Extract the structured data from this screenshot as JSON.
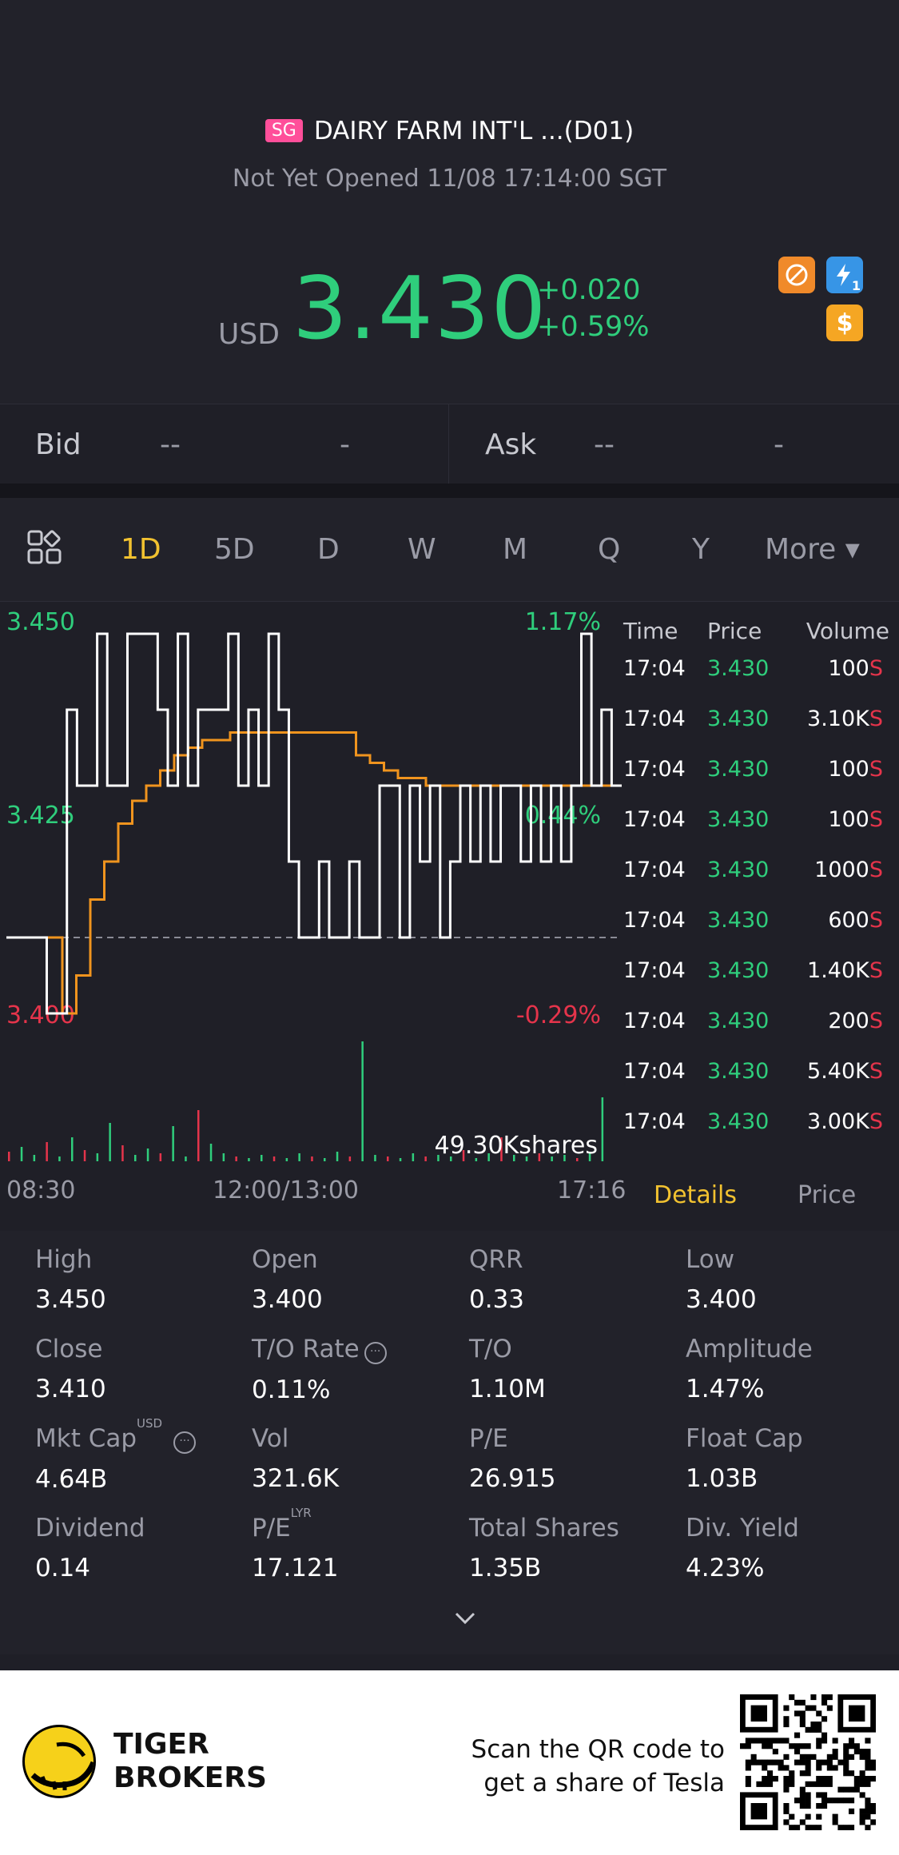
{
  "header": {
    "market_badge": "SG",
    "stock_name": "DAIRY FARM INT'L ...(D01)",
    "status": "Not Yet Opened 11/08 17:14:00 SGT",
    "currency": "USD",
    "price": "3.430",
    "change": "+0.020",
    "change_pct": "+0.59%",
    "icons": [
      "no-short-icon",
      "lightning-icon",
      "dollar-icon"
    ],
    "icon_badge": "1",
    "dollar_glyph": "$"
  },
  "bidask": {
    "bid_label": "Bid",
    "bid_price": "--",
    "bid_size": "-",
    "ask_label": "Ask",
    "ask_price": "--",
    "ask_size": "-"
  },
  "periods": [
    "1D",
    "5D",
    "D",
    "W",
    "M",
    "Q",
    "Y",
    "More ▾"
  ],
  "active_period": "1D",
  "chart_data": {
    "type": "line",
    "title": "",
    "y_labels": [
      "3.450",
      "3.425",
      "3.400"
    ],
    "pct_labels": [
      "1.17%",
      "0.44%",
      "-0.29%"
    ],
    "x_labels": [
      "08:30",
      "12:00/13:00",
      "17:16"
    ],
    "ylim": [
      3.4,
      3.45
    ],
    "prev_close": 3.41,
    "volume_label": "49.30Kshares",
    "series": [
      {
        "color": "#ffffff",
        "values": [
          3.41,
          3.41,
          3.41,
          3.41,
          3.4,
          3.4,
          3.44,
          3.43,
          3.43,
          3.45,
          3.43,
          3.43,
          3.45,
          3.45,
          3.45,
          3.44,
          3.43,
          3.45,
          3.43,
          3.44,
          3.44,
          3.44,
          3.45,
          3.43,
          3.44,
          3.43,
          3.45,
          3.44,
          3.42,
          3.41,
          3.41,
          3.42,
          3.41,
          3.41,
          3.42,
          3.41,
          3.41,
          3.43,
          3.43,
          3.41,
          3.43,
          3.42,
          3.43,
          3.41,
          3.42,
          3.43,
          3.42,
          3.43,
          3.42,
          3.43,
          3.43,
          3.42,
          3.43,
          3.42,
          3.43,
          3.42,
          3.43,
          3.45,
          3.43,
          3.44,
          3.43,
          3.43
        ]
      },
      {
        "color": "#f0941e",
        "values": [
          3.41,
          3.41,
          3.41,
          3.41,
          3.4,
          3.405,
          3.415,
          3.42,
          3.425,
          3.428,
          3.43,
          3.432,
          3.434,
          3.435,
          3.436,
          3.436,
          3.437,
          3.437,
          3.437,
          3.437,
          3.437,
          3.437,
          3.437,
          3.437,
          3.437,
          3.434,
          3.433,
          3.432,
          3.431,
          3.431,
          3.43,
          3.43,
          3.43,
          3.43,
          3.43,
          3.43,
          3.43,
          3.43,
          3.43,
          3.43,
          3.43,
          3.43,
          3.43,
          3.43,
          3.43
        ]
      }
    ]
  },
  "ticklist": {
    "headers": {
      "time": "Time",
      "price": "Price",
      "volume": "Volume"
    },
    "rows": [
      {
        "time": "17:04",
        "price": "3.430",
        "vol": "100",
        "side": "S"
      },
      {
        "time": "17:04",
        "price": "3.430",
        "vol": "3.10K",
        "side": "S"
      },
      {
        "time": "17:04",
        "price": "3.430",
        "vol": "100",
        "side": "S"
      },
      {
        "time": "17:04",
        "price": "3.430",
        "vol": "100",
        "side": "S"
      },
      {
        "time": "17:04",
        "price": "3.430",
        "vol": "1000",
        "side": "S"
      },
      {
        "time": "17:04",
        "price": "3.430",
        "vol": "600",
        "side": "S"
      },
      {
        "time": "17:04",
        "price": "3.430",
        "vol": "1.40K",
        "side": "S"
      },
      {
        "time": "17:04",
        "price": "3.430",
        "vol": "200",
        "side": "S"
      },
      {
        "time": "17:04",
        "price": "3.430",
        "vol": "5.40K",
        "side": "S"
      },
      {
        "time": "17:04",
        "price": "3.430",
        "vol": "3.00K",
        "side": "S"
      }
    ]
  },
  "tabs": {
    "details": "Details",
    "price": "Price"
  },
  "stats": [
    {
      "label": "High",
      "value": "3.450"
    },
    {
      "label": "Open",
      "value": "3.400"
    },
    {
      "label": "QRR",
      "value": "0.33"
    },
    {
      "label": "Low",
      "value": "3.400"
    },
    {
      "label": "Close",
      "value": "3.410"
    },
    {
      "label": "T/O Rate",
      "value": "0.11%"
    },
    {
      "label": "T/O",
      "value": "1.10M"
    },
    {
      "label": "Amplitude",
      "value": "1.47%"
    },
    {
      "label": "Mkt Cap",
      "value": "4.64B",
      "sup": "USD"
    },
    {
      "label": "Vol",
      "value": "321.6K"
    },
    {
      "label": "P/E",
      "value": "26.915"
    },
    {
      "label": "Float Cap",
      "value": "1.03B"
    },
    {
      "label": "Dividend",
      "value": "0.14"
    },
    {
      "label": "P/E",
      "value": "17.121",
      "sup": "LYR"
    },
    {
      "label": "Total Shares",
      "value": "1.35B"
    },
    {
      "label": "Div. Yield",
      "value": "4.23%"
    }
  ],
  "footer": {
    "brand_line1": "TIGER",
    "brand_line2": "BROKERS",
    "scan_line1": "Scan the QR code to",
    "scan_line2": "get a share of Tesla"
  }
}
